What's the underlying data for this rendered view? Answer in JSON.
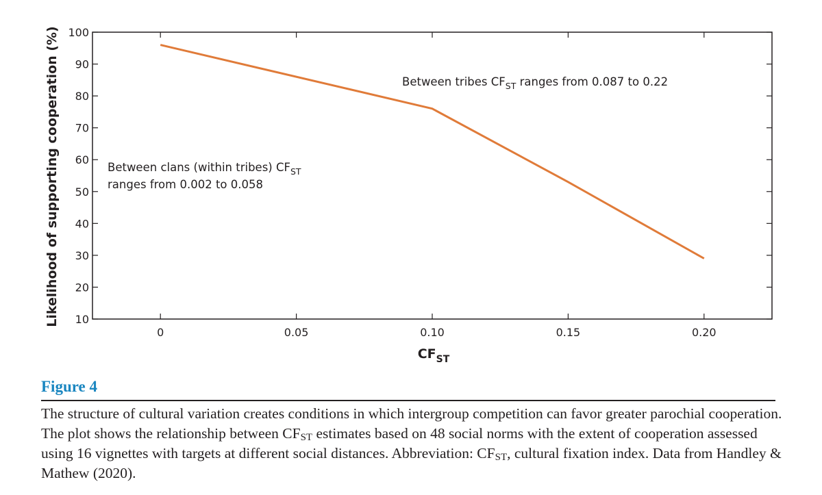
{
  "chart_data": {
    "type": "line",
    "x": [
      0,
      0.1,
      0.15,
      0.2
    ],
    "y": [
      96,
      76,
      53,
      29
    ],
    "xlim": [
      -0.025,
      0.225
    ],
    "ylim": [
      10,
      100
    ],
    "xticks": [
      0,
      0.05,
      0.1,
      0.15,
      0.2
    ],
    "xtick_labels": [
      "0",
      "0.05",
      "0.10",
      "0.15",
      "0.20"
    ],
    "yticks": [
      10,
      20,
      30,
      40,
      50,
      60,
      70,
      80,
      90,
      100
    ],
    "ytick_labels": [
      "10",
      "20",
      "30",
      "40",
      "50",
      "60",
      "70",
      "80",
      "90",
      "100"
    ],
    "xlabel": {
      "main": "CF",
      "sub": "ST"
    },
    "ylabel": "Likelihood of supporting cooperation (%)",
    "grid": false,
    "line_color": "#e07b39",
    "annotations": [
      {
        "lines": [
          {
            "pre": "Between clans (within tribes) CF",
            "sub": "ST",
            "post": ""
          },
          {
            "pre": "ranges from 0.002 to 0.058",
            "sub": "",
            "post": ""
          }
        ]
      },
      {
        "lines": [
          {
            "pre": "Between tribes CF",
            "sub": "ST",
            "post": " ranges from 0.087 to 0.22"
          }
        ]
      }
    ]
  },
  "figure": {
    "title": "Figure 4",
    "caption": {
      "part1": "The structure of cultural variation creates conditions in which intergroup competition can favor greater parochial cooperation. The plot shows the relationship between CF",
      "sub1": "ST",
      "part2": " estimates based on 48 social norms with the extent of cooperation assessed using 16 vignettes with targets at different social distances. Abbreviation: CF",
      "sub2": "ST",
      "part3": ", cultural fixation index. Data from Handley & Mathew (2020)."
    }
  }
}
